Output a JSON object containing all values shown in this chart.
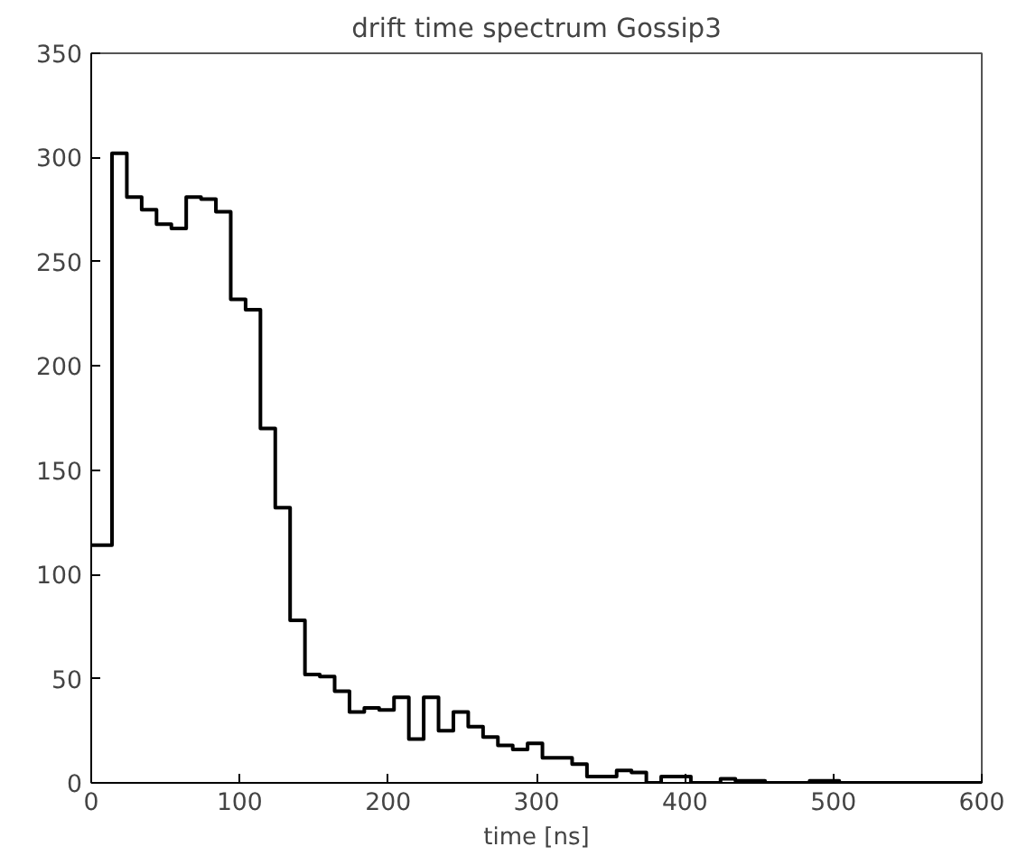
{
  "chart_data": {
    "type": "histogram",
    "title": "drift time spectrum Gossip3",
    "xlabel": "time [ns]",
    "bins": [
      0,
      14,
      24,
      34,
      44,
      54,
      64,
      74,
      84,
      94,
      104,
      114,
      124,
      134,
      144,
      154,
      164,
      174,
      184,
      194,
      204,
      214,
      224,
      234,
      244,
      254,
      264,
      274,
      284,
      294,
      304,
      314,
      324,
      334,
      344,
      354,
      364,
      374,
      384,
      394,
      404,
      414,
      424,
      434,
      444,
      454,
      464,
      474,
      484,
      494,
      504,
      514,
      524,
      534,
      544,
      554,
      564,
      574,
      584,
      594,
      600
    ],
    "values": [
      114,
      302,
      281,
      275,
      268,
      266,
      281,
      280,
      274,
      232,
      227,
      170,
      132,
      78,
      52,
      51,
      44,
      34,
      36,
      35,
      41,
      21,
      41,
      25,
      34,
      27,
      22,
      18,
      16,
      19,
      12,
      12,
      9,
      3,
      3,
      6,
      5,
      0,
      3,
      3,
      0,
      0,
      2,
      1,
      1,
      0,
      0,
      0,
      1,
      1,
      0,
      0,
      0,
      0,
      0,
      0,
      0,
      0,
      0,
      0
    ],
    "color": "#000000",
    "xlim": [
      0,
      600
    ],
    "ylim": [
      0,
      350
    ],
    "xticks": [
      0,
      100,
      200,
      300,
      400,
      500,
      600
    ],
    "yticks": [
      0,
      50,
      100,
      150,
      200,
      250,
      300,
      350
    ],
    "grid": false
  }
}
